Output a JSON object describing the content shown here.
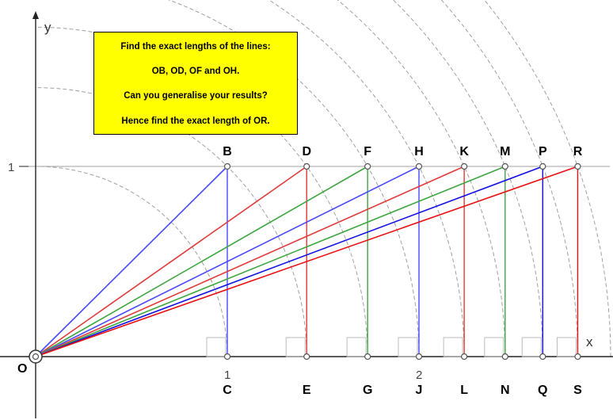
{
  "question": {
    "line1": "Find the exact lengths of  the lines:",
    "line2": "OB, OD, OF and OH.",
    "line3": "Can you generalise your results?",
    "line4": "Hence find the exact length of OR."
  },
  "axes": {
    "x_label": "x",
    "y_label": "y",
    "x_ticks": [
      "1",
      "2"
    ],
    "y_ticks": [
      "1"
    ]
  },
  "origin_label": "O",
  "colors": {
    "blue": "#4747ff",
    "red": "#e03a3a",
    "green": "#3ea63e",
    "darkblue": "#1010e0",
    "brightred": "#e81010",
    "grid": "#a0a0a0",
    "arc": "#888888"
  },
  "points": [
    {
      "top": "B",
      "bottom": "C",
      "x": 1,
      "color": "blue"
    },
    {
      "top": "D",
      "bottom": "E",
      "x": 1.4142,
      "color": "red"
    },
    {
      "top": "F",
      "bottom": "G",
      "x": 1.7321,
      "color": "green"
    },
    {
      "top": "H",
      "bottom": "J",
      "x": 2,
      "color": "blue"
    },
    {
      "top": "K",
      "bottom": "L",
      "x": 2.2361,
      "color": "red"
    },
    {
      "top": "M",
      "bottom": "N",
      "x": 2.4495,
      "color": "green"
    },
    {
      "top": "P",
      "bottom": "Q",
      "x": 2.6458,
      "color": "darkblue"
    },
    {
      "top": "R",
      "bottom": "S",
      "x": 2.8284,
      "color": "brightred"
    }
  ]
}
